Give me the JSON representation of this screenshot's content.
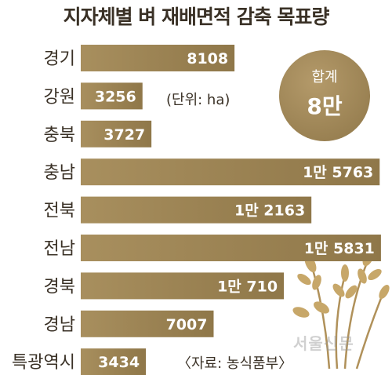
{
  "title": "지자체별 벼 재배면적 감축 목표량",
  "unit_note": "(단위: ha)",
  "source_note": "〈자료: 농식품부〉",
  "total": {
    "label": "합계",
    "value": "8만"
  },
  "watermark": "서울신문",
  "colors": {
    "bar": "#8f7749",
    "bar_light": "#a88f5e",
    "text": "#3a3126"
  },
  "chart_data": {
    "type": "bar",
    "orientation": "horizontal",
    "title": "지자체별 벼 재배면적 감축 목표량",
    "xlabel": "",
    "ylabel": "",
    "unit": "ha",
    "xlim": [
      0,
      16000
    ],
    "grid": false,
    "categories": [
      "경기",
      "강원",
      "충북",
      "충남",
      "전북",
      "전남",
      "경북",
      "경남",
      "특광역시"
    ],
    "values": [
      8108,
      3256,
      3727,
      15763,
      12163,
      15831,
      10710,
      7007,
      3434
    ],
    "value_labels": [
      "8108",
      "3256",
      "3727",
      "1만 5763",
      "1만 2163",
      "1만 5831",
      "1만 710",
      "7007",
      "3434"
    ]
  }
}
